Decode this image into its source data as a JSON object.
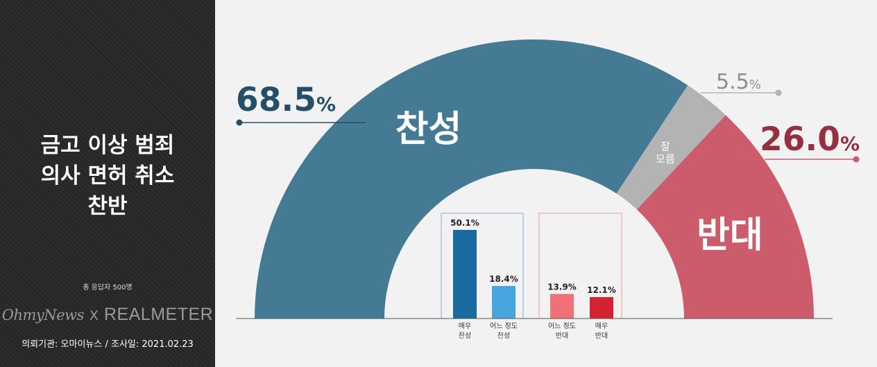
{
  "sidebar": {
    "title_lines": [
      "금고 이상 범죄",
      "의사 면허 취소",
      "찬반"
    ],
    "total_respondents": "총 응답자 500명",
    "logo_left": "OhmyNews",
    "logo_sep": "X",
    "logo_right": "REALMETER",
    "footer": "의뢰기관: 오마이뉴스  /  조사일: 2021.02.23"
  },
  "colors": {
    "approve": "#457a95",
    "unsure": "#b3b3b3",
    "oppose": "#cc5c6c",
    "approve_label": "#244f66",
    "oppose_label": "#963040",
    "strong_approve": "#196aa0",
    "some_approve": "#47a6de",
    "some_oppose": "#f07078",
    "strong_oppose": "#d42232",
    "approve_box": "#7fb0d3",
    "oppose_box": "#eb9ba2",
    "unsure_label": "#8e8e8e"
  },
  "chart_data": [
    {
      "type": "pie",
      "shape": "semicircle-donut",
      "slices": [
        {
          "label": "찬성",
          "value": 68.5,
          "display": "68.5",
          "unit": "%"
        },
        {
          "label": "잘 모름",
          "label_lines": [
            "잘",
            "모름"
          ],
          "value": 5.5,
          "display": "5.5",
          "unit": "%"
        },
        {
          "label": "반대",
          "value": 26.0,
          "display": "26.0",
          "unit": "%"
        }
      ]
    },
    {
      "type": "bar",
      "categories": [
        "매우 찬성",
        "어느 정도 찬성",
        "어느 정도 반대",
        "매우 반대"
      ],
      "category_lines": [
        [
          "매우",
          "찬성"
        ],
        [
          "어느 정도",
          "찬성"
        ],
        [
          "어느 정도",
          "반대"
        ],
        [
          "매우",
          "반대"
        ]
      ],
      "values": [
        50.1,
        18.4,
        13.9,
        12.1
      ],
      "value_labels": [
        "50.1%",
        "18.4%",
        "13.9%",
        "12.1%"
      ],
      "groups": [
        "찬성",
        "찬성",
        "반대",
        "반대"
      ],
      "ylim": [
        0,
        50.1
      ]
    }
  ]
}
